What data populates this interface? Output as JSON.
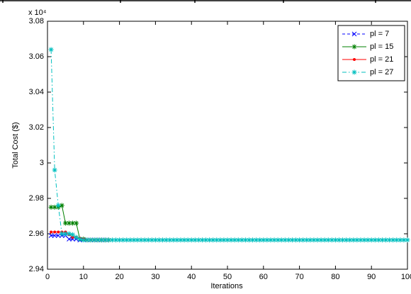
{
  "chart_data": {
    "type": "line",
    "y_label": "Total Cost ($)",
    "x_label": "Iterations",
    "multiplier": "x 10⁴",
    "xlim": [
      0,
      100
    ],
    "xticks": [
      0,
      10,
      20,
      30,
      40,
      50,
      60,
      70,
      80,
      90,
      100
    ],
    "ylim": [
      2.94,
      3.08
    ],
    "yticks": [
      2.94,
      2.96,
      2.98,
      3,
      3.02,
      3.04,
      3.06,
      3.08
    ],
    "grid": false,
    "legend": "upper right",
    "series": [
      {
        "name": "pl = 7",
        "color": "#0000ff",
        "marker": "x",
        "dash": "4,3",
        "x": [
          1,
          2,
          3,
          4,
          5,
          6,
          7,
          8,
          9,
          10,
          11,
          12,
          13,
          14,
          15,
          16
        ],
        "values": [
          2.959,
          2.959,
          2.959,
          2.959,
          2.959,
          2.957,
          2.957,
          2.957,
          2.9565,
          2.9565,
          2.9565,
          2.9565,
          2.9565,
          2.9565,
          2.9565,
          2.9565
        ]
      },
      {
        "name": "pl = 15",
        "color": "#008000",
        "marker": "*",
        "dash": "none",
        "x": [
          1,
          2,
          3,
          4,
          5,
          6,
          7,
          8,
          9,
          10,
          11,
          12,
          13,
          14,
          15,
          16,
          17
        ],
        "values": [
          2.975,
          2.975,
          2.975,
          2.976,
          2.966,
          2.966,
          2.966,
          2.966,
          2.957,
          2.957,
          2.9565,
          2.9565,
          2.9565,
          2.9565,
          2.9565,
          2.9565,
          2.9565
        ]
      },
      {
        "name": "pl = 21",
        "color": "#ff0000",
        "marker": ".",
        "dash": "none",
        "x": [
          1,
          2,
          3,
          4,
          5,
          6,
          7,
          8,
          9,
          10,
          11,
          12,
          13,
          14,
          15,
          16,
          17
        ],
        "values": [
          2.961,
          2.961,
          2.961,
          2.961,
          2.961,
          2.9595,
          2.958,
          2.958,
          2.9575,
          2.957,
          2.9565,
          2.9565,
          2.9565,
          2.9565,
          2.9565,
          2.9565,
          2.9565
        ]
      },
      {
        "name": "pl = 27",
        "color": "#00bfbf",
        "marker": "*",
        "dash": "6,3,1.5,3",
        "x": [
          1,
          2,
          3,
          4,
          5,
          6,
          7,
          8,
          9,
          10,
          11,
          12,
          13,
          14,
          15,
          16,
          17,
          18,
          19,
          20,
          21,
          22,
          23,
          24,
          25,
          26,
          27,
          28,
          29,
          30,
          31,
          32,
          33,
          34,
          35,
          36,
          37,
          38,
          39,
          40,
          41,
          42,
          43,
          44,
          45,
          46,
          47,
          48,
          49,
          50,
          51,
          52,
          53,
          54,
          55,
          56,
          57,
          58,
          59,
          60,
          61,
          62,
          63,
          64,
          65,
          66,
          67,
          68,
          69,
          70,
          71,
          72,
          73,
          74,
          75,
          76,
          77,
          78,
          79,
          80,
          81,
          82,
          83,
          84,
          85,
          86,
          87,
          88,
          89,
          90,
          91,
          92,
          93,
          94,
          95,
          96,
          97,
          98,
          99,
          100
        ],
        "values": [
          3.064,
          2.996,
          2.976,
          2.96,
          2.96,
          2.96,
          2.9595,
          2.958,
          2.957,
          2.9565,
          2.9565,
          2.9565,
          2.9565,
          2.9565,
          2.9565,
          2.9565,
          2.9565,
          2.9565,
          2.9565,
          2.9565,
          2.9565,
          2.9565,
          2.9565,
          2.9565,
          2.9565,
          2.9565,
          2.9565,
          2.9565,
          2.9565,
          2.9565,
          2.9565,
          2.9565,
          2.9565,
          2.9565,
          2.9565,
          2.9565,
          2.9565,
          2.9565,
          2.9565,
          2.9565,
          2.9565,
          2.9565,
          2.9565,
          2.9565,
          2.9565,
          2.9565,
          2.9565,
          2.9565,
          2.9565,
          2.9565,
          2.9565,
          2.9565,
          2.9565,
          2.9565,
          2.9565,
          2.9565,
          2.9565,
          2.9565,
          2.9565,
          2.9565,
          2.9565,
          2.9565,
          2.9565,
          2.9565,
          2.9565,
          2.9565,
          2.9565,
          2.9565,
          2.9565,
          2.9565,
          2.9565,
          2.9565,
          2.9565,
          2.9565,
          2.9565,
          2.9565,
          2.9565,
          2.9565,
          2.9565,
          2.9565,
          2.9565,
          2.9565,
          2.9565,
          2.9565,
          2.9565,
          2.9565,
          2.9565,
          2.9565,
          2.9565,
          2.9565,
          2.9565,
          2.9565,
          2.9565,
          2.9565,
          2.9565,
          2.9565,
          2.9565,
          2.9565,
          2.9565,
          2.9565
        ]
      }
    ]
  }
}
